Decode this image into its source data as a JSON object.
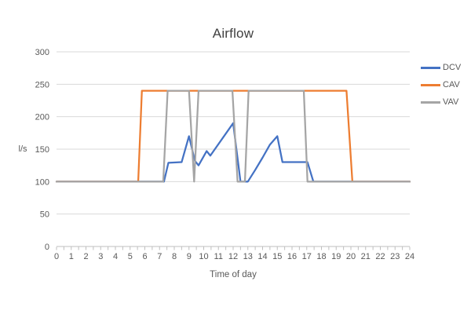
{
  "chart_data": {
    "type": "line",
    "title": "Airflow",
    "xlabel": "Time of day",
    "ylabel": "l/s",
    "xlim": [
      0,
      24
    ],
    "ylim": [
      0,
      300
    ],
    "x_tick_step": 1,
    "x_minor_tick_step": 0.5,
    "y_ticks": [
      0,
      50,
      100,
      150,
      200,
      250,
      300
    ],
    "grid": "horizontal-only",
    "legend_position": "right",
    "legend_entries": [
      "DCV",
      "CAV",
      "VAV"
    ],
    "series": [
      {
        "name": "DCV",
        "color": "#4472C4",
        "points": [
          [
            0,
            100
          ],
          [
            7.3,
            100
          ],
          [
            7.6,
            129
          ],
          [
            8.5,
            130
          ],
          [
            9,
            170
          ],
          [
            9.4,
            132
          ],
          [
            9.65,
            125
          ],
          [
            10.2,
            147
          ],
          [
            10.45,
            140
          ],
          [
            12,
            190
          ],
          [
            12.5,
            100
          ],
          [
            13,
            100
          ],
          [
            13.5,
            118
          ],
          [
            14,
            137
          ],
          [
            14.5,
            157
          ],
          [
            15,
            170
          ],
          [
            15.35,
            130
          ],
          [
            17.05,
            130
          ],
          [
            17.45,
            100
          ],
          [
            24,
            100
          ]
        ]
      },
      {
        "name": "CAV",
        "color": "#ED7D31",
        "points": [
          [
            0,
            100
          ],
          [
            5.55,
            100
          ],
          [
            5.8,
            240
          ],
          [
            19.7,
            240
          ],
          [
            20.1,
            100
          ],
          [
            24,
            100
          ]
        ]
      },
      {
        "name": "VAV",
        "color": "#A5A5A5",
        "points": [
          [
            0,
            100
          ],
          [
            7.25,
            100
          ],
          [
            7.55,
            240
          ],
          [
            9,
            240
          ],
          [
            9.35,
            100
          ],
          [
            9.65,
            240
          ],
          [
            11.95,
            240
          ],
          [
            12.3,
            100
          ],
          [
            12.8,
            100
          ],
          [
            13.05,
            240
          ],
          [
            16.8,
            240
          ],
          [
            17.05,
            100
          ],
          [
            24,
            100
          ]
        ]
      }
    ]
  },
  "styles": {
    "grid_color": "#D9D9D9",
    "axis_color": "#BFBFBF",
    "tick_label_color": "#595959",
    "title_color": "#404040",
    "background": "#FFFFFF",
    "line_width": 2.25
  }
}
